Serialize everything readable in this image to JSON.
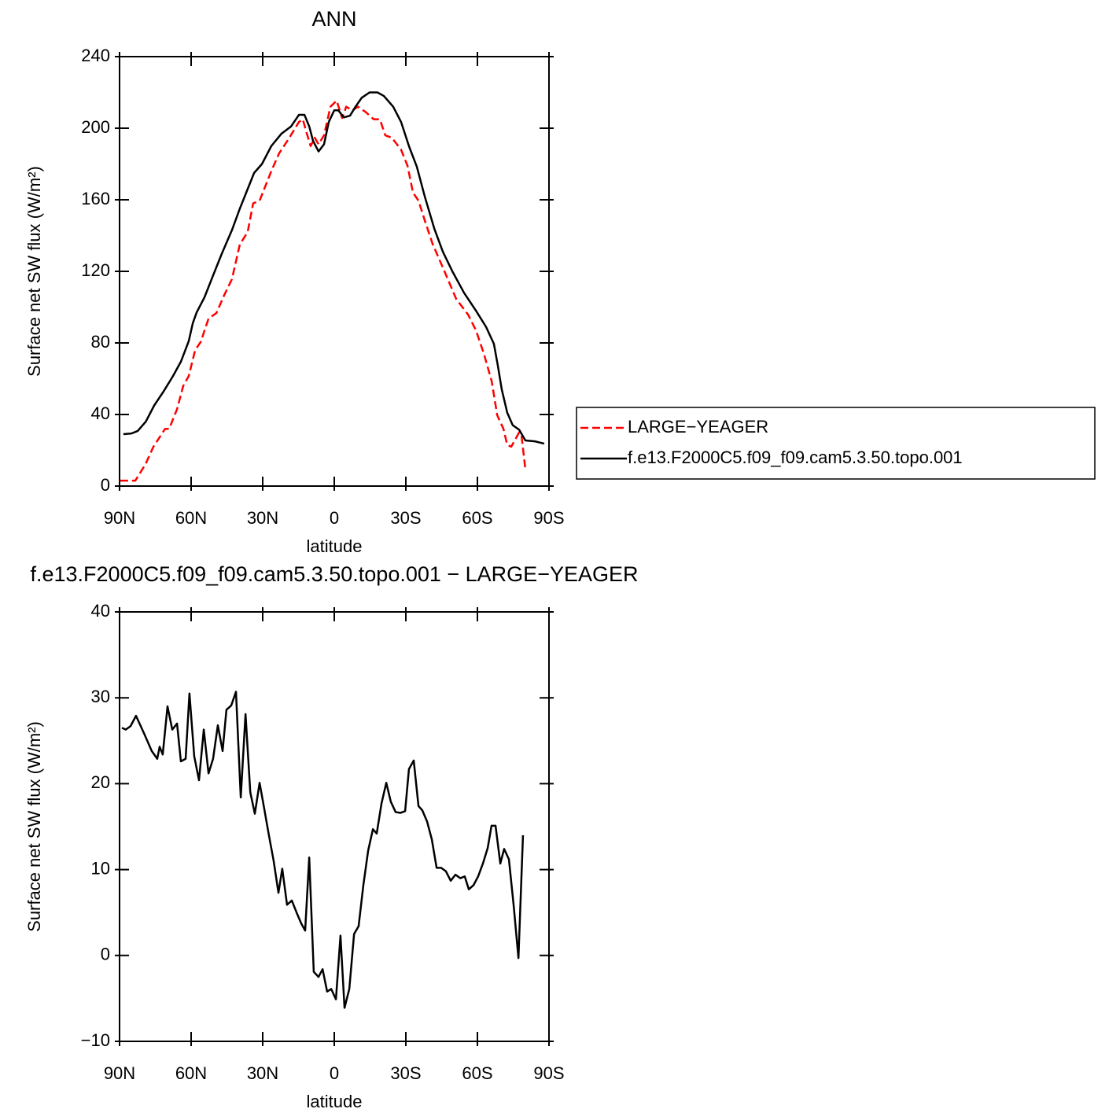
{
  "chart_data": [
    {
      "type": "line",
      "title": "ANN",
      "x_label": "latitude",
      "y_label": "Surface net SW flux (W/m²)",
      "xlim": [
        90,
        -90
      ],
      "xticks": [
        {
          "value": 90,
          "label": "90N"
        },
        {
          "value": 60,
          "label": "60N"
        },
        {
          "value": 30,
          "label": "30N"
        },
        0,
        {
          "value": -30,
          "label": "30S"
        },
        {
          "value": -60,
          "label": "60S"
        },
        {
          "value": -90,
          "label": "90S"
        }
      ],
      "ylim": [
        0,
        240
      ],
      "yticks": [
        0,
        40,
        80,
        120,
        160,
        200,
        240
      ],
      "legend": "right",
      "series": [
        {
          "name": "LARGE−YEAGER",
          "color": "#ff0000",
          "dashed": true,
          "x": [
            89.7,
            83.4,
            79.1,
            75.8,
            70.9,
            69.2,
            65.9,
            63.3,
            61,
            58.3,
            56,
            52.7,
            49.4,
            46.1,
            42.9,
            39.6,
            36.3,
            34,
            31.3,
            26.4,
            23.1,
            18.8,
            14.8,
            13.2,
            11.5,
            9.9,
            8.2,
            6.6,
            4.3,
            1.6,
            -1,
            -3.3,
            -5,
            -7.6,
            -9.9,
            -13.2,
            -16.5,
            -19.1,
            -21.4,
            -24.1,
            -28,
            -30.7,
            -33,
            -35.3,
            -37.9,
            -41.2,
            -46.2,
            -51.1,
            -56.1,
            -59.4,
            -62.7,
            -66,
            -68.3,
            -70.9,
            -72.5,
            -74.2,
            -77.5,
            -78.5,
            -80
          ],
          "values": [
            3,
            3,
            12.3,
            22,
            32,
            32,
            43,
            56,
            61.5,
            76,
            80.5,
            93.6,
            96.7,
            106.8,
            115.6,
            135,
            142,
            158,
            159.5,
            176,
            186,
            194.7,
            203.5,
            205,
            197,
            190,
            194.7,
            191,
            196,
            212,
            215.4,
            205.7,
            212,
            210,
            212,
            209,
            205,
            205,
            196,
            194.7,
            188,
            179,
            164,
            159.5,
            148.6,
            135.4,
            120,
            104.6,
            95.8,
            87,
            74,
            58.5,
            39.6,
            32,
            23,
            22,
            30,
            28,
            10.5
          ]
        },
        {
          "name": "f.e13.F2000C5.f09_f09.cam5.3.50.topo.001",
          "color": "#000000",
          "dashed": false,
          "x": [
            88.4,
            85,
            82.4,
            79,
            75.5,
            71.5,
            67.6,
            64.3,
            61,
            59.3,
            57.7,
            54.4,
            51,
            47.1,
            42.9,
            39.6,
            36.9,
            33.6,
            30.3,
            26.4,
            22.1,
            18.1,
            14.8,
            12.5,
            10.5,
            8.9,
            6.6,
            4.3,
            2.3,
            0,
            -1.7,
            -4,
            -6.6,
            -8.9,
            -11.5,
            -14.8,
            -18.1,
            -20.8,
            -24.7,
            -28,
            -31.3,
            -34.6,
            -37.9,
            -41.9,
            -45.5,
            -49.5,
            -54.4,
            -59.4,
            -63.6,
            -66.9,
            -68.6,
            -70.2,
            -72.5,
            -74.8,
            -77.5,
            -80.1,
            -84.1,
            -88
          ],
          "values": [
            29,
            29.4,
            30.8,
            36,
            45,
            53,
            61.5,
            69.5,
            81,
            91,
            97,
            105.5,
            117,
            130,
            143,
            155,
            164,
            175,
            180,
            190,
            197,
            201,
            207.5,
            207.5,
            201,
            193,
            187,
            191,
            203.5,
            210,
            210,
            206,
            207,
            212,
            217,
            220,
            220,
            218,
            212,
            203.5,
            190,
            178.5,
            162,
            144,
            131,
            120,
            108,
            98,
            89,
            79.5,
            67,
            54,
            41,
            34,
            31.5,
            25.5,
            25,
            23.7
          ]
        }
      ]
    },
    {
      "type": "line",
      "title": "f.e13.F2000C5.f09_f09.cam5.3.50.topo.001 − LARGE−YEAGER",
      "x_label": "latitude",
      "y_label": "Surface net SW flux (W/m²)",
      "xlim": [
        90,
        -90
      ],
      "xticks": [
        {
          "value": 90,
          "label": "90N"
        },
        {
          "value": 60,
          "label": "60N"
        },
        {
          "value": 30,
          "label": "30N"
        },
        0,
        {
          "value": -30,
          "label": "30S"
        },
        {
          "value": -60,
          "label": "60S"
        },
        {
          "value": -90,
          "label": "90S"
        }
      ],
      "ylim": [
        -10,
        40
      ],
      "yticks": [
        {
          "value": -10,
          "label": "−10"
        },
        0,
        10,
        20,
        30,
        40
      ],
      "series": [
        {
          "color": "#000000",
          "dashed": false,
          "x": [
            89,
            87.4,
            85.4,
            83.1,
            79.8,
            76.5,
            74.2,
            73.2,
            71.9,
            69.9,
            67.9,
            65.9,
            64.3,
            62.3,
            60.7,
            58.7,
            56.7,
            54.7,
            52.7,
            50.8,
            48.8,
            46.8,
            45.2,
            43.2,
            41.2,
            39.2,
            37.2,
            35.2,
            33.3,
            31.3,
            29.3,
            27.4,
            25.4,
            23.4,
            21.8,
            19.8,
            17.8,
            15.8,
            13.8,
            12.2,
            10.5,
            8.6,
            6.6,
            4.9,
            3,
            1.3,
            -0.7,
            -2.6,
            -4.3,
            -6.3,
            -8.3,
            -10.2,
            -12.2,
            -14.2,
            -16.2,
            -17.8,
            -19.8,
            -21.8,
            -23.7,
            -25.7,
            -27.7,
            -29.7,
            -31.3,
            -33.3,
            -35.3,
            -36.9,
            -38.9,
            -40.9,
            -42.9,
            -44.8,
            -46.8,
            -48.8,
            -50.8,
            -52.8,
            -54.7,
            -56.4,
            -58.4,
            -60.3,
            -62.3,
            -64.3,
            -65.9,
            -67.6,
            -69.6,
            -71.2,
            -73.2,
            -75.2,
            -77.2,
            -79.1
          ],
          "values": [
            26.5,
            26.3,
            26.7,
            27.9,
            25.9,
            23.8,
            22.9,
            24.3,
            23.4,
            29,
            26.3,
            27,
            22.6,
            22.9,
            30.5,
            23.2,
            20.4,
            26.3,
            21.2,
            22.9,
            26.8,
            23.8,
            28.6,
            29.1,
            30.7,
            18.4,
            28.1,
            19,
            16.5,
            20.1,
            17,
            14,
            11,
            7.3,
            10.1,
            5.9,
            6.4,
            5,
            3.7,
            2.9,
            11.4,
            -1.9,
            -2.5,
            -1.6,
            -4.2,
            -3.9,
            -5.1,
            2.3,
            -6.1,
            -3.9,
            2.5,
            3.4,
            8.2,
            12.2,
            14.7,
            14.2,
            17.7,
            20.1,
            17.9,
            16.7,
            16.6,
            16.8,
            21.7,
            22.7,
            17.4,
            16.9,
            15.6,
            13.5,
            10.2,
            10.2,
            9.8,
            8.7,
            9.4,
            9,
            9.2,
            7.7,
            8.2,
            9.2,
            10.7,
            12.5,
            15.1,
            15.1,
            10.7,
            12.4,
            11.2,
            5.8,
            -0.3,
            14
          ]
        }
      ]
    }
  ]
}
